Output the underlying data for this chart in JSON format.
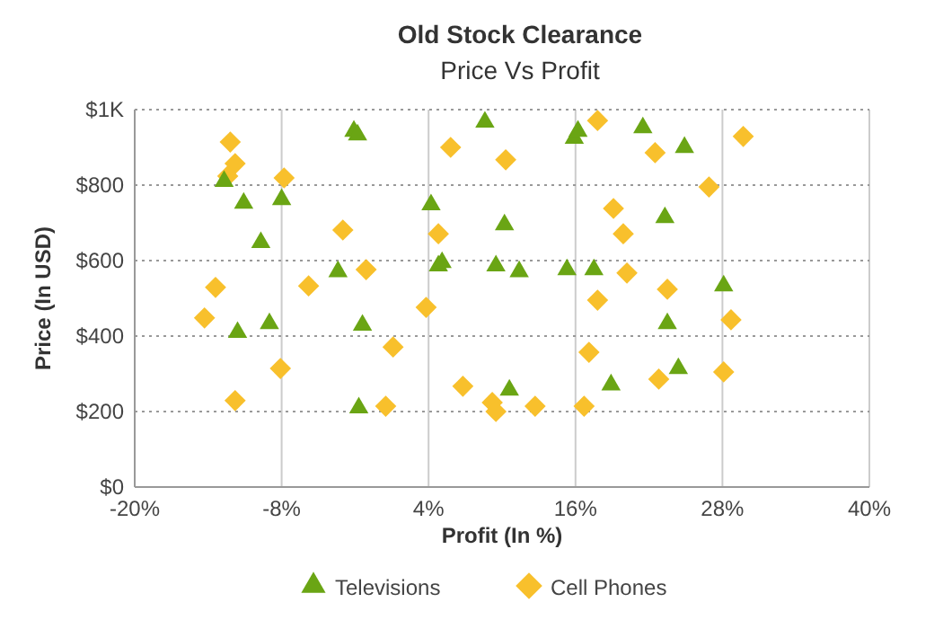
{
  "chart_data": {
    "type": "scatter",
    "title": "Old Stock Clearance",
    "subtitle": "Price Vs Profit",
    "xlabel": "Profit (In %)",
    "ylabel": "Price (In USD)",
    "xlim": [
      -20,
      40
    ],
    "xticks": [
      {
        "value": -20,
        "label": "-20%"
      },
      {
        "value": -8,
        "label": "-8%"
      },
      {
        "value": 4,
        "label": "4%"
      },
      {
        "value": 16,
        "label": "16%"
      },
      {
        "value": 28,
        "label": "28%"
      },
      {
        "value": 40,
        "label": "40%"
      }
    ],
    "ylim": [
      0,
      1000
    ],
    "yticks": [
      {
        "value": 0,
        "label": "$0"
      },
      {
        "value": 200,
        "label": "$200"
      },
      {
        "value": 400,
        "label": "$400"
      },
      {
        "value": 600,
        "label": "$600"
      },
      {
        "value": 800,
        "label": "$800"
      },
      {
        "value": 1000,
        "label": "$1K"
      }
    ],
    "grid": true,
    "legend": "bottom",
    "series": [
      {
        "name": "Televisions",
        "color": "#6aa514",
        "marker": "triangle",
        "x": [
          -12.7,
          -11.1,
          -9.7,
          -11.6,
          -9.0,
          -8.0,
          -2.1,
          -1.8,
          -3.4,
          -1.4,
          -1.7,
          4.2,
          4.8,
          5.1,
          8.6,
          10.2,
          9.5,
          11.4,
          10.6,
          15.9,
          16.2,
          15.3,
          17.5,
          21.5,
          18.9,
          23.3,
          24.9,
          23.5,
          24.4,
          28.1
        ],
        "values": [
          810,
          752,
          648,
          410,
          433,
          762,
          943,
          933,
          571,
          429,
          210,
          748,
          586,
          595,
          967,
          695,
          586,
          571,
          257,
          924,
          943,
          576,
          576,
          952,
          271,
          714,
          900,
          433,
          314,
          533
        ]
      },
      {
        "name": "Cell Phones",
        "color": "#f8c02c",
        "marker": "diamond",
        "x": [
          -12.2,
          -11.8,
          -12.4,
          -7.8,
          -13.4,
          -14.3,
          -11.8,
          -3.0,
          -5.8,
          -1.1,
          -8.1,
          3.8,
          1.1,
          0.5,
          5.8,
          4.8,
          6.8,
          9.2,
          9.5,
          10.3,
          12.7,
          17.8,
          22.5,
          19.1,
          19.9,
          20.2,
          17.8,
          17.1,
          16.7,
          22.8,
          23.5,
          26.9,
          29.7,
          28.7,
          28.1
        ],
        "values": [
          914,
          857,
          824,
          819,
          529,
          448,
          229,
          681,
          533,
          576,
          314,
          476,
          371,
          214,
          900,
          671,
          267,
          224,
          200,
          867,
          214,
          971,
          886,
          738,
          671,
          567,
          495,
          357,
          214,
          286,
          524,
          795,
          929,
          443,
          305
        ]
      }
    ]
  }
}
